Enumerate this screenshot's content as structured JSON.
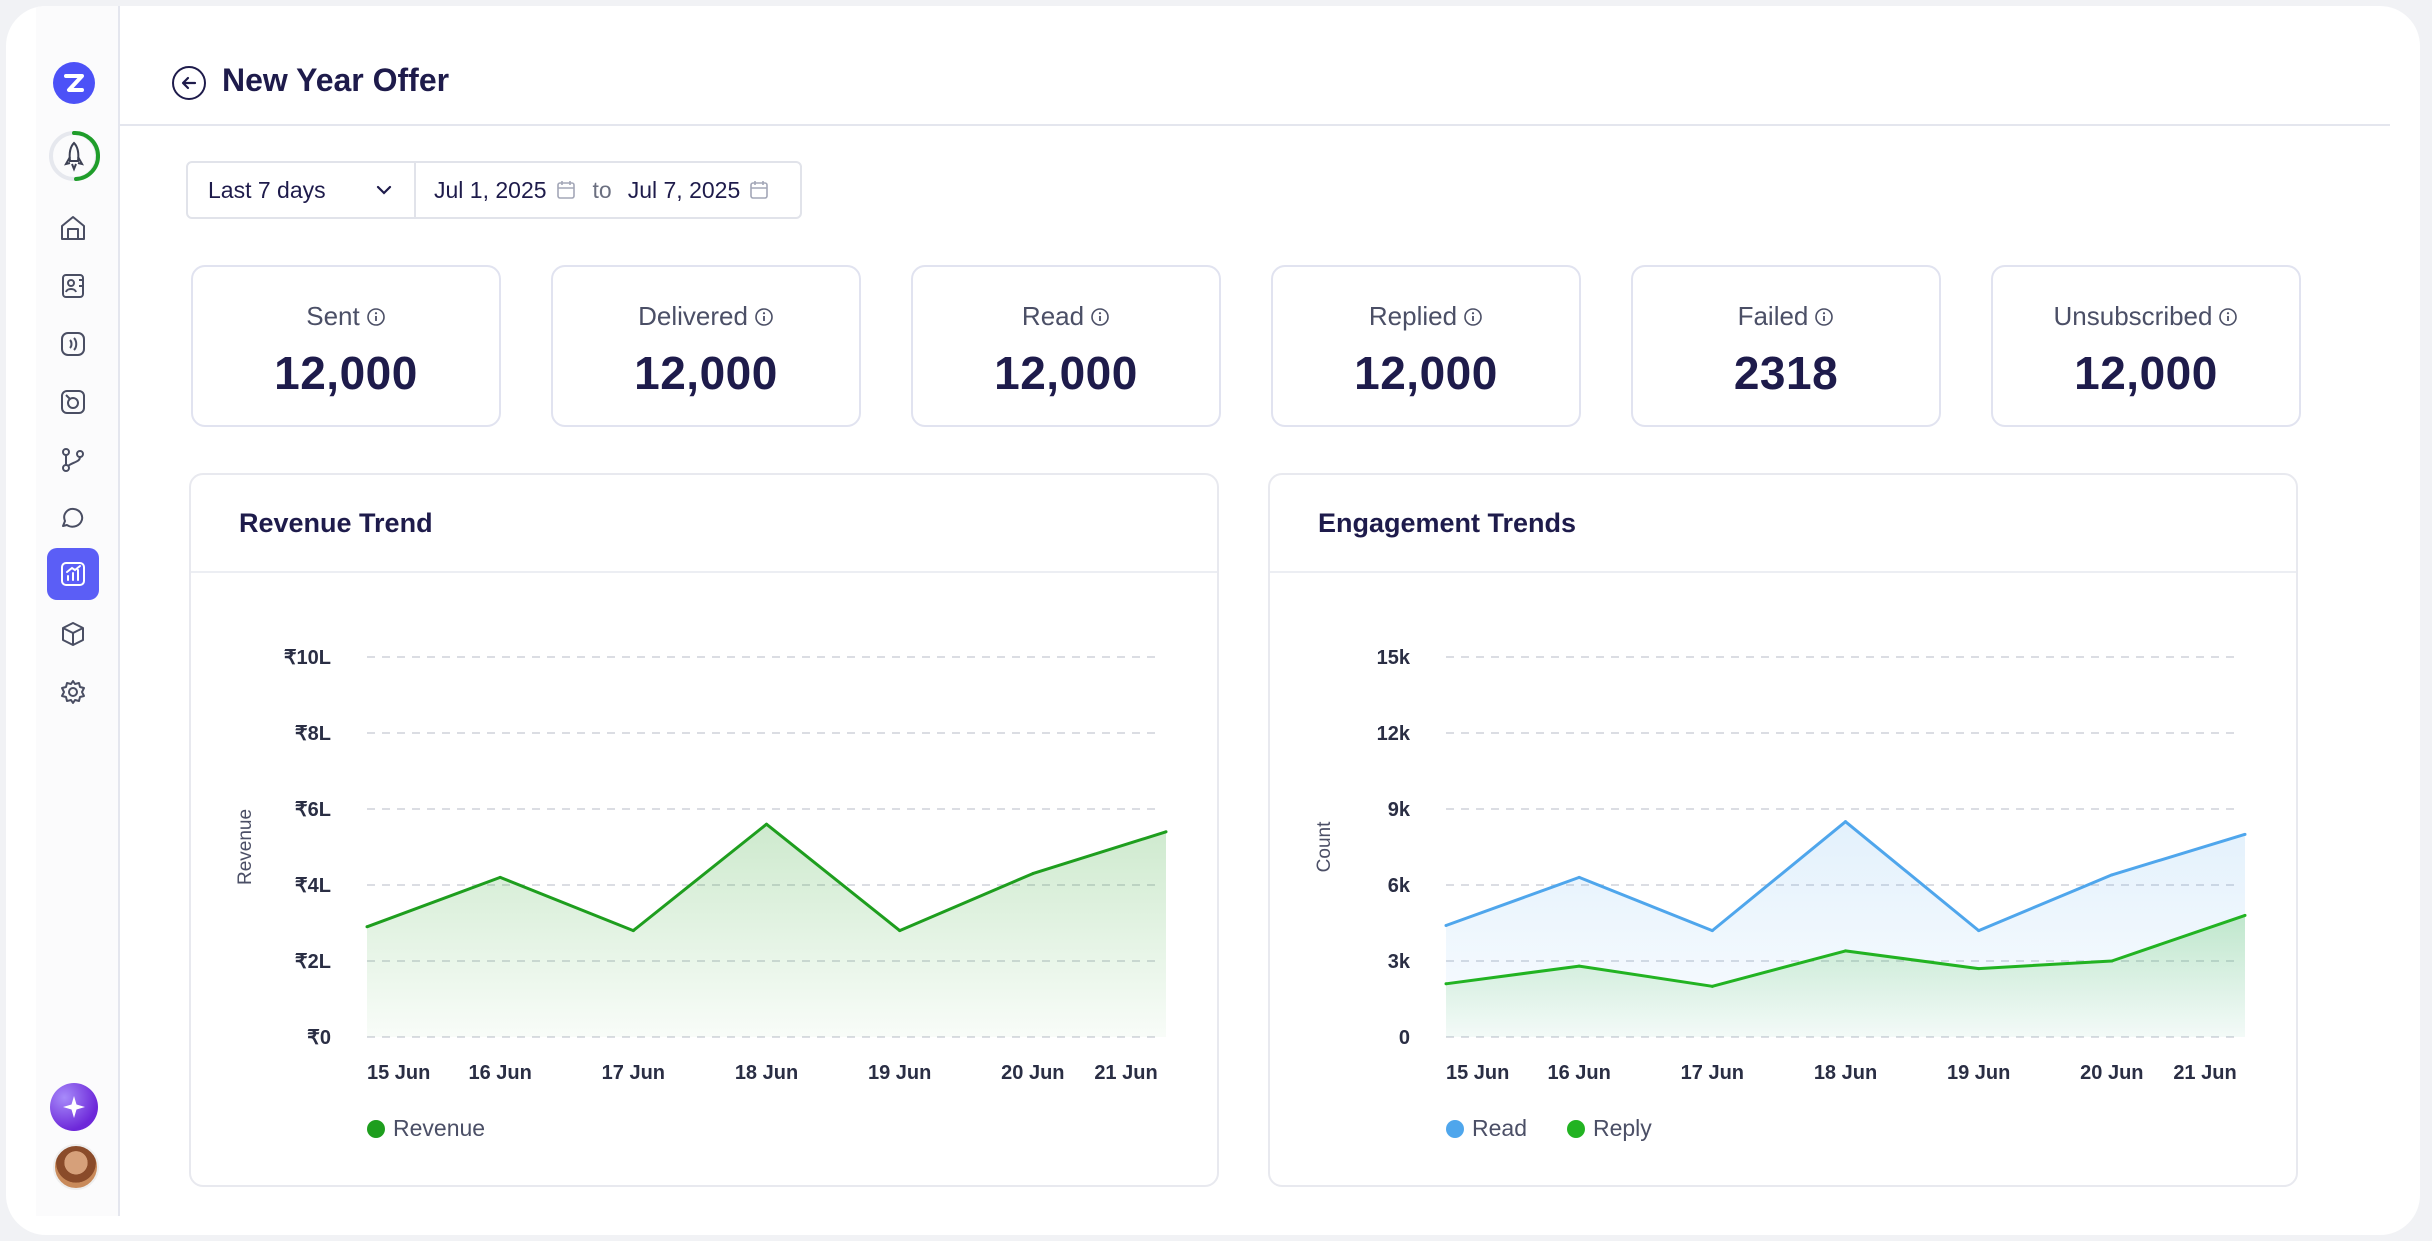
{
  "header": {
    "title": "New Year Offer"
  },
  "filter": {
    "range": "Last 7 days",
    "start_date": "Jul 1, 2025",
    "to": "to",
    "end_date": "Jul 7, 2025"
  },
  "stats": [
    {
      "label": "Sent",
      "value": "12,000"
    },
    {
      "label": "Delivered",
      "value": "12,000"
    },
    {
      "label": "Read",
      "value": "12,000"
    },
    {
      "label": "Replied",
      "value": "12,000"
    },
    {
      "label": "Failed",
      "value": "2318"
    },
    {
      "label": "Unsubscribed",
      "value": "12,000"
    }
  ],
  "sidebar": {
    "items": [
      "home-icon",
      "contacts-icon",
      "broadcast-icon",
      "templates-icon",
      "flows-icon",
      "chat-icon",
      "analytics-icon",
      "catalog-icon",
      "settings-icon"
    ],
    "active": "analytics-icon"
  },
  "colors": {
    "accent": "#5b5ef6",
    "green": "#1e9e1e",
    "blue": "#4fa6ec",
    "title": "#1e1b4b"
  },
  "chart_data": [
    {
      "type": "area",
      "title": "Revenue Trend",
      "ylabel": "Revenue",
      "xlabel": "",
      "categories": [
        "15 Jun",
        "16 Jun",
        "17 Jun",
        "18 Jun",
        "19 Jun",
        "20 Jun",
        "21 Jun"
      ],
      "y_ticks": [
        "₹0",
        "₹2L",
        "₹4L",
        "₹6L",
        "₹8L",
        "₹10L"
      ],
      "ylim": [
        0,
        10
      ],
      "y_unit": "L",
      "series": [
        {
          "name": "Revenue",
          "color": "#1e9e1e",
          "values": [
            2.9,
            4.2,
            2.8,
            5.6,
            2.8,
            4.3,
            5.4
          ]
        }
      ],
      "grid": true,
      "legend": "bottom-left"
    },
    {
      "type": "area",
      "title": "Engagement Trends",
      "ylabel": "Count",
      "xlabel": "",
      "categories": [
        "15 Jun",
        "16 Jun",
        "17 Jun",
        "18 Jun",
        "19 Jun",
        "20 Jun",
        "21 Jun"
      ],
      "y_ticks": [
        "0",
        "3k",
        "6k",
        "9k",
        "12k",
        "15k"
      ],
      "ylim": [
        0,
        15000
      ],
      "series": [
        {
          "name": "Read",
          "color": "#4fa6ec",
          "values": [
            4400,
            6300,
            4200,
            8500,
            4200,
            6400,
            8000
          ]
        },
        {
          "name": "Reply",
          "color": "#22b322",
          "values": [
            2100,
            2800,
            2000,
            3400,
            2700,
            3000,
            4800
          ]
        }
      ],
      "grid": true,
      "legend": "bottom-left"
    }
  ]
}
